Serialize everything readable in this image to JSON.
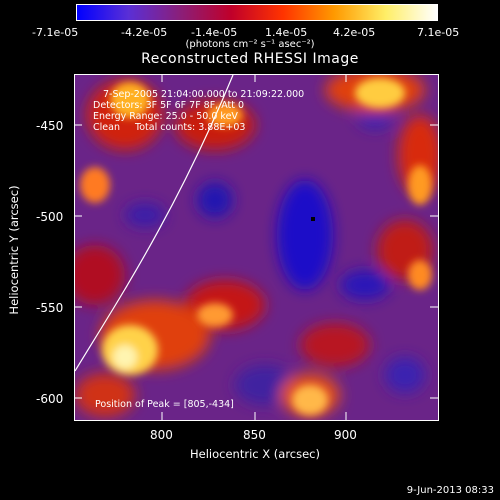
{
  "colorbar": {
    "ticks": [
      "-7.1e-05",
      "-4.2e-05",
      "-1.4e-05",
      "1.4e-05",
      "4.2e-05",
      "7.1e-05"
    ],
    "unit_label": "(photons cm⁻² s⁻¹ asec⁻²)",
    "colors": [
      "#0000ff",
      "#5a2fd6",
      "#8a1f7a",
      "#c0002a",
      "#ff3300",
      "#ff9900",
      "#ffee66",
      "#ffffff"
    ]
  },
  "plot": {
    "title": "Reconstructed RHESSI Image",
    "xlabel": "Heliocentric X (arcsec)",
    "ylabel": "Heliocentric Y (arcsec)",
    "xticks": [
      "800",
      "850",
      "900"
    ],
    "yticks": [
      "-450",
      "-500",
      "-550",
      "-600"
    ],
    "info_lines": [
      "7-Sep-2005 21:04:00.000 to 21:09:22.000",
      "Detectors: 3F 5F 6F 7F 8F, Att 0",
      "Energy Range: 25.0 - 50.0 keV",
      "Clean     Total counts: 3.88E+03"
    ],
    "peak_label": "Position of Peak = [805,-434]"
  },
  "footer": {
    "date": "9-Jun-2013 08:33"
  }
}
